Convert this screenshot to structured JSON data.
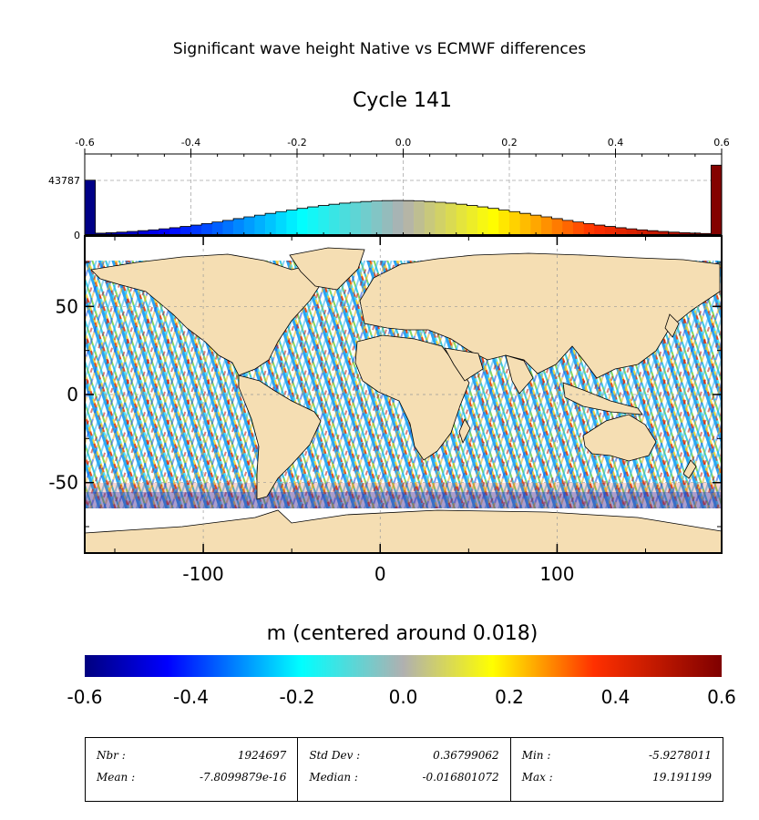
{
  "title": "Significant wave height Native vs ECMWF differences",
  "subtitle": "Cycle 141",
  "chart_data": [
    {
      "type": "bar",
      "name": "histogram",
      "x_ticks": [
        "-0.6",
        "-0.4",
        "-0.2",
        "0.0",
        "0.2",
        "0.4",
        "0.6"
      ],
      "y_ticks": [
        "0",
        "43787"
      ],
      "xlim": [
        -0.6,
        0.6
      ],
      "ylim": [
        0,
        65000
      ],
      "grid": true,
      "bin_width": 0.02,
      "bins_x": [
        -0.59,
        -0.57,
        -0.55,
        -0.53,
        -0.51,
        -0.49,
        -0.47,
        -0.45,
        -0.43,
        -0.41,
        -0.39,
        -0.37,
        -0.35,
        -0.33,
        -0.31,
        -0.29,
        -0.27,
        -0.25,
        -0.23,
        -0.21,
        -0.19,
        -0.17,
        -0.15,
        -0.13,
        -0.11,
        -0.09,
        -0.07,
        -0.05,
        -0.03,
        -0.01,
        0.01,
        0.03,
        0.05,
        0.07,
        0.09,
        0.11,
        0.13,
        0.15,
        0.17,
        0.19,
        0.21,
        0.23,
        0.25,
        0.27,
        0.29,
        0.31,
        0.33,
        0.35,
        0.37,
        0.39,
        0.41,
        0.43,
        0.45,
        0.47,
        0.49,
        0.51,
        0.53,
        0.55,
        0.57,
        0.59
      ],
      "counts": [
        44000,
        1500,
        1900,
        2400,
        2900,
        3500,
        4200,
        5000,
        5900,
        6900,
        8000,
        9200,
        10500,
        11800,
        13200,
        14600,
        16000,
        17400,
        18800,
        20100,
        21400,
        22600,
        23700,
        24700,
        25600,
        26300,
        26900,
        27300,
        27600,
        27700,
        27600,
        27300,
        26900,
        26300,
        25600,
        24700,
        23700,
        22600,
        21400,
        20100,
        18800,
        17400,
        16000,
        14600,
        13200,
        11800,
        10500,
        9200,
        8000,
        6900,
        5900,
        5000,
        4200,
        3500,
        2900,
        2400,
        1900,
        1600,
        1300,
        56000
      ]
    },
    {
      "type": "scatter",
      "name": "map",
      "description": "Along-track significant wave height differences on world map",
      "x_ticks": [
        "-100",
        "0",
        "100"
      ],
      "y_ticks": [
        "50",
        "0",
        "-50"
      ],
      "xlim": [
        -167,
        193
      ],
      "ylim": [
        -90,
        90
      ]
    }
  ],
  "colorbar": {
    "label": "m (centered around 0.018)",
    "ticks": [
      "-0.6",
      "-0.4",
      "-0.2",
      "0.0",
      "0.2",
      "0.4",
      "0.6"
    ],
    "range": [
      -0.6,
      0.6
    ]
  },
  "stats": [
    [
      {
        "label": "Nbr :",
        "value": "1924697"
      },
      {
        "label": "Mean :",
        "value": "-7.8099879e-16"
      }
    ],
    [
      {
        "label": "Std Dev :",
        "value": "0.36799062"
      },
      {
        "label": "Median :",
        "value": "-0.016801072"
      }
    ],
    [
      {
        "label": "Min :",
        "value": "-5.9278011"
      },
      {
        "label": "Max :",
        "value": "19.191199"
      }
    ]
  ]
}
